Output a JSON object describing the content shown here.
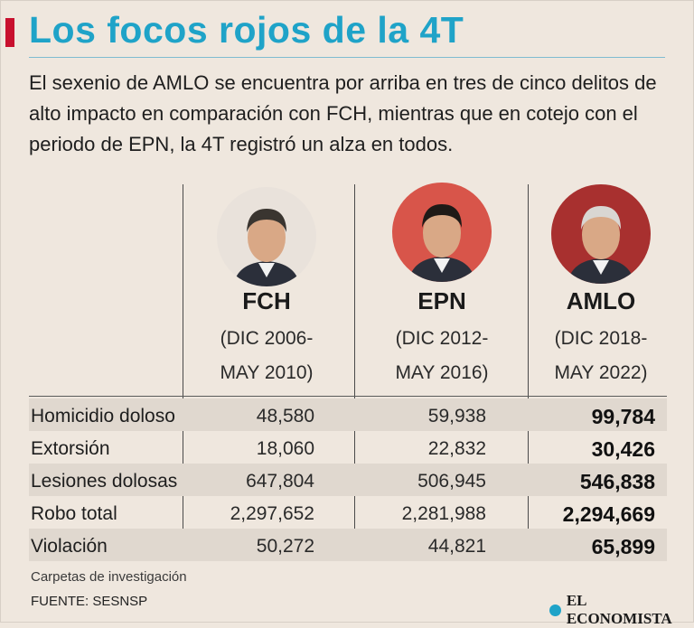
{
  "header": {
    "title": "Los focos rojos de la 4T",
    "intro": "El sexenio de AMLO se encuentra por arriba en tres de cinco delitos de alto impacto en comparación con FCH, mientras que en cotejo con el periodo de EPN, la 4T registró un alza en todos."
  },
  "columns": [
    {
      "name": "FCH",
      "period_line1": "(DIC 2006-",
      "period_line2": "MAY 2010)",
      "photo_bg": "#e9e2db"
    },
    {
      "name": "EPN",
      "period_line1": "(DIC 2012-",
      "period_line2": "MAY 2016)",
      "photo_bg": "#d8554a"
    },
    {
      "name": "AMLO",
      "period_line1": "(DIC 2018-",
      "period_line2": "MAY 2022)",
      "photo_bg": "#a8302f"
    }
  ],
  "chart_data": {
    "type": "table",
    "title": "Los focos rojos de la 4T",
    "categories": [
      "Homicidio doloso",
      "Extorsión",
      "Lesiones dolosas",
      "Robo total",
      "Violación"
    ],
    "series": [
      {
        "name": "FCH",
        "values": [
          "48,580",
          "18,060",
          "647,804",
          "2,297,652",
          "50,272"
        ]
      },
      {
        "name": "EPN",
        "values": [
          "59,938",
          "22,832",
          "506,945",
          "2,281,988",
          "44,821"
        ]
      },
      {
        "name": "AMLO",
        "values": [
          "99,784",
          "30,426",
          "546,838",
          "2,294,669",
          "65,899"
        ]
      }
    ]
  },
  "footer": {
    "note": "Carpetas de investigación",
    "source": "FUENTE: SESNSP",
    "brand": "EL ECONOMISTA"
  },
  "colors": {
    "title": "#1fa3c8",
    "accent": "#c8102e",
    "background": "#efe7de",
    "row_shade": "#e0d8cf"
  }
}
